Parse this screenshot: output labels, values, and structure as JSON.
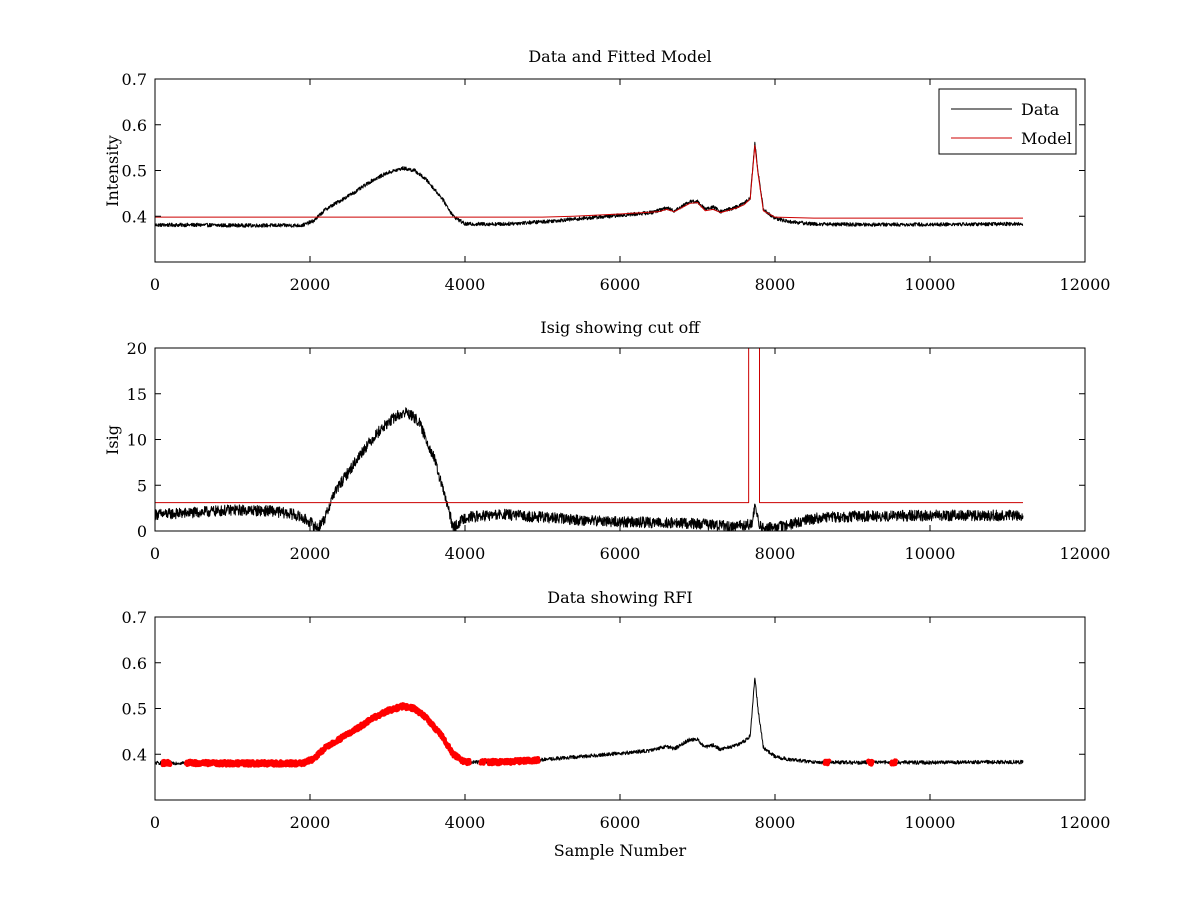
{
  "chart_data": [
    {
      "type": "line",
      "title": "Data and Fitted Model",
      "xlabel": "",
      "ylabel": "Intensity",
      "xlim": [
        0,
        12000
      ],
      "ylim": [
        0.3,
        0.7
      ],
      "xticks": [
        0,
        2000,
        4000,
        6000,
        8000,
        10000,
        12000
      ],
      "yticks": [
        0.4,
        0.5,
        0.6,
        0.7
      ],
      "grid": false,
      "legend": {
        "position": "top-right",
        "entries": [
          "Data",
          "Model"
        ]
      },
      "series": [
        {
          "name": "Data",
          "color": "#000000",
          "noise": 0.004,
          "points": [
            [
              0,
              0.381
            ],
            [
              500,
              0.381
            ],
            [
              1000,
              0.38
            ],
            [
              1500,
              0.38
            ],
            [
              1900,
              0.38
            ],
            [
              2050,
              0.39
            ],
            [
              2200,
              0.415
            ],
            [
              2400,
              0.435
            ],
            [
              2600,
              0.455
            ],
            [
              2800,
              0.478
            ],
            [
              3000,
              0.495
            ],
            [
              3200,
              0.505
            ],
            [
              3350,
              0.5
            ],
            [
              3500,
              0.48
            ],
            [
              3700,
              0.44
            ],
            [
              3850,
              0.4
            ],
            [
              4000,
              0.383
            ],
            [
              4500,
              0.383
            ],
            [
              5000,
              0.388
            ],
            [
              5500,
              0.395
            ],
            [
              6000,
              0.402
            ],
            [
              6400,
              0.408
            ],
            [
              6600,
              0.418
            ],
            [
              6700,
              0.412
            ],
            [
              6900,
              0.432
            ],
            [
              7000,
              0.432
            ],
            [
              7100,
              0.415
            ],
            [
              7200,
              0.42
            ],
            [
              7300,
              0.41
            ],
            [
              7500,
              0.42
            ],
            [
              7600,
              0.428
            ],
            [
              7680,
              0.44
            ],
            [
              7740,
              0.56
            ],
            [
              7780,
              0.5
            ],
            [
              7850,
              0.415
            ],
            [
              8000,
              0.395
            ],
            [
              8200,
              0.388
            ],
            [
              8500,
              0.383
            ],
            [
              9000,
              0.382
            ],
            [
              10000,
              0.382
            ],
            [
              11000,
              0.383
            ],
            [
              11200,
              0.383
            ]
          ]
        },
        {
          "name": "Model",
          "color": "#cc0000",
          "noise": 0,
          "points": [
            [
              0,
              0.398
            ],
            [
              4600,
              0.398
            ],
            [
              5000,
              0.398
            ],
            [
              5400,
              0.4
            ],
            [
              6000,
              0.405
            ],
            [
              6500,
              0.41
            ],
            [
              6600,
              0.415
            ],
            [
              6700,
              0.41
            ],
            [
              6900,
              0.428
            ],
            [
              7000,
              0.43
            ],
            [
              7100,
              0.412
            ],
            [
              7200,
              0.415
            ],
            [
              7300,
              0.408
            ],
            [
              7500,
              0.418
            ],
            [
              7600,
              0.425
            ],
            [
              7680,
              0.438
            ],
            [
              7740,
              0.555
            ],
            [
              7780,
              0.495
            ],
            [
              7850,
              0.412
            ],
            [
              8000,
              0.398
            ],
            [
              8500,
              0.396
            ],
            [
              11200,
              0.396
            ]
          ]
        }
      ]
    },
    {
      "type": "line",
      "title": "Isig showing cut off",
      "xlabel": "",
      "ylabel": "Isig",
      "xlim": [
        0,
        12000
      ],
      "ylim": [
        0,
        20
      ],
      "xticks": [
        0,
        2000,
        4000,
        6000,
        8000,
        10000,
        12000
      ],
      "yticks": [
        0,
        5,
        10,
        15,
        20
      ],
      "grid": false,
      "series": [
        {
          "color": "#000000",
          "noise": 0.6,
          "points": [
            [
              0,
              1.8
            ],
            [
              500,
              2.0
            ],
            [
              1000,
              2.3
            ],
            [
              1500,
              2.2
            ],
            [
              1800,
              1.8
            ],
            [
              2000,
              1.0
            ],
            [
              2100,
              0.3
            ],
            [
              2200,
              1.5
            ],
            [
              2300,
              4.0
            ],
            [
              2500,
              6.5
            ],
            [
              2700,
              9.0
            ],
            [
              2900,
              11.0
            ],
            [
              3100,
              12.5
            ],
            [
              3250,
              13.0
            ],
            [
              3400,
              12.0
            ],
            [
              3600,
              8.0
            ],
            [
              3750,
              3.5
            ],
            [
              3850,
              0.3
            ],
            [
              4000,
              1.5
            ],
            [
              4500,
              1.8
            ],
            [
              5000,
              1.5
            ],
            [
              5500,
              1.2
            ],
            [
              6000,
              1.0
            ],
            [
              6600,
              0.9
            ],
            [
              7000,
              0.8
            ],
            [
              7500,
              0.5
            ],
            [
              7700,
              0.8
            ],
            [
              7740,
              2.5
            ],
            [
              7800,
              0.5
            ],
            [
              7900,
              0.3
            ],
            [
              8100,
              0.5
            ],
            [
              8300,
              1.0
            ],
            [
              8600,
              1.5
            ],
            [
              9000,
              1.6
            ],
            [
              10000,
              1.7
            ],
            [
              11200,
              1.7
            ]
          ]
        },
        {
          "color": "#cc0000",
          "noise": 0,
          "points": [
            [
              0,
              3.1
            ],
            [
              7660,
              3.1
            ],
            [
              7660,
              20
            ],
            [
              7660,
              20
            ],
            [
              7800,
              20
            ],
            [
              7800,
              3.1
            ],
            [
              11200,
              3.1
            ]
          ]
        }
      ]
    },
    {
      "type": "line",
      "title": "Data showing RFI",
      "xlabel": "Sample Number",
      "ylabel": "",
      "xlim": [
        0,
        12000
      ],
      "ylim": [
        0.3,
        0.7
      ],
      "xticks": [
        0,
        2000,
        4000,
        6000,
        8000,
        10000,
        12000
      ],
      "yticks": [
        0.4,
        0.5,
        0.6,
        0.7
      ],
      "grid": false,
      "series": [
        {
          "color": "#000000",
          "noise": 0.004,
          "points": [
            [
              0,
              0.381
            ],
            [
              500,
              0.381
            ],
            [
              1000,
              0.38
            ],
            [
              1500,
              0.38
            ],
            [
              1900,
              0.38
            ],
            [
              2050,
              0.39
            ],
            [
              2200,
              0.415
            ],
            [
              2400,
              0.435
            ],
            [
              2600,
              0.455
            ],
            [
              2800,
              0.478
            ],
            [
              3000,
              0.495
            ],
            [
              3200,
              0.505
            ],
            [
              3350,
              0.5
            ],
            [
              3500,
              0.48
            ],
            [
              3700,
              0.44
            ],
            [
              3850,
              0.4
            ],
            [
              4000,
              0.383
            ],
            [
              4500,
              0.383
            ],
            [
              5000,
              0.388
            ],
            [
              5500,
              0.395
            ],
            [
              6000,
              0.402
            ],
            [
              6400,
              0.408
            ],
            [
              6600,
              0.418
            ],
            [
              6700,
              0.412
            ],
            [
              6900,
              0.432
            ],
            [
              7000,
              0.432
            ],
            [
              7100,
              0.415
            ],
            [
              7200,
              0.42
            ],
            [
              7300,
              0.41
            ],
            [
              7500,
              0.42
            ],
            [
              7600,
              0.428
            ],
            [
              7680,
              0.44
            ],
            [
              7740,
              0.57
            ],
            [
              7780,
              0.5
            ],
            [
              7850,
              0.415
            ],
            [
              8000,
              0.395
            ],
            [
              8200,
              0.388
            ],
            [
              8500,
              0.383
            ],
            [
              9000,
              0.382
            ],
            [
              10000,
              0.382
            ],
            [
              11000,
              0.383
            ],
            [
              11200,
              0.383
            ]
          ]
        },
        {
          "color": "#ff0000",
          "noise": 0.005,
          "flagged_ranges": [
            [
              100,
              200
            ],
            [
              400,
              4060
            ],
            [
              4200,
              4260
            ],
            [
              4300,
              4950
            ],
            [
              8640,
              8700
            ],
            [
              9200,
              9260
            ],
            [
              9500,
              9560
            ]
          ]
        }
      ]
    }
  ]
}
